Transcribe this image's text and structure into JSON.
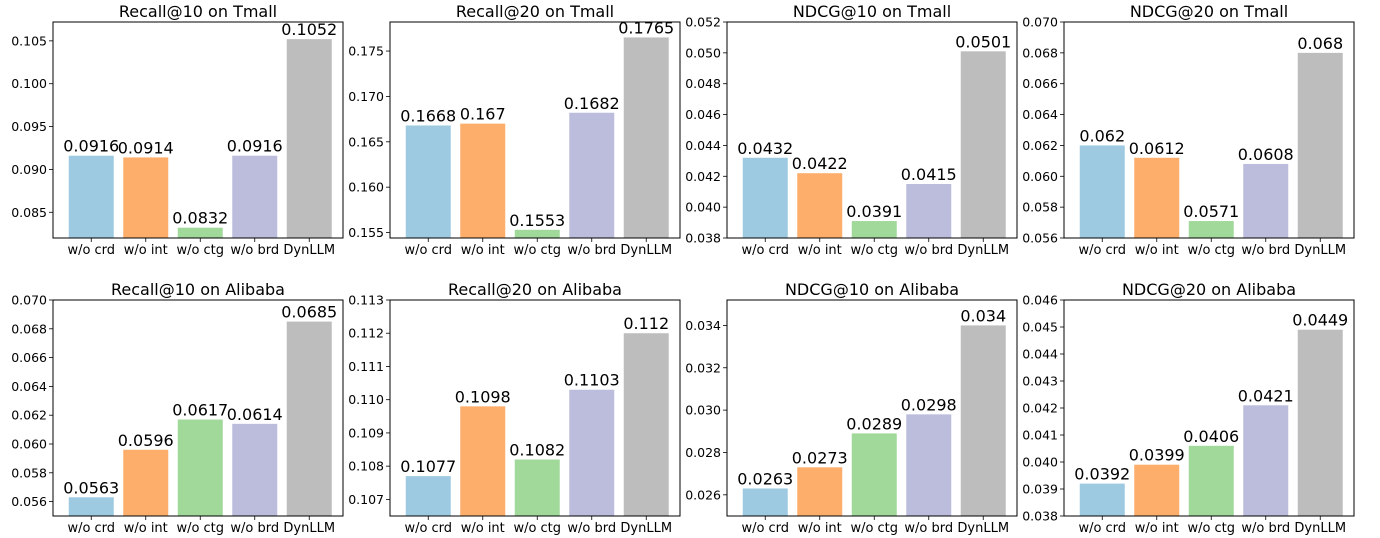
{
  "chart_data": [
    {
      "type": "bar",
      "title": "Recall@10 on Tmall",
      "categories": [
        "w/o crd",
        "w/o int",
        "w/o ctg",
        "w/o brd",
        "DynLLM"
      ],
      "values": [
        0.0916,
        0.0914,
        0.0832,
        0.0916,
        0.1052
      ],
      "value_labels": [
        "0.0916",
        "0.0914",
        "0.0832",
        "0.0916",
        "0.1052"
      ],
      "ylim": [
        0.082,
        0.1072
      ],
      "yticks": [
        "0.085",
        "0.090",
        "0.095",
        "0.100",
        "0.105"
      ],
      "xlabel": "",
      "ylabel": ""
    },
    {
      "type": "bar",
      "title": "Recall@20 on Tmall",
      "categories": [
        "w/o crd",
        "w/o int",
        "w/o ctg",
        "w/o brd",
        "DynLLM"
      ],
      "values": [
        0.1668,
        0.167,
        0.1553,
        0.1682,
        0.1765
      ],
      "value_labels": [
        "0.1668",
        "0.167",
        "0.1553",
        "0.1682",
        "0.1765"
      ],
      "ylim": [
        0.1544,
        0.1782
      ],
      "yticks": [
        "0.155",
        "0.160",
        "0.165",
        "0.170",
        "0.175"
      ],
      "xlabel": "",
      "ylabel": ""
    },
    {
      "type": "bar",
      "title": "NDCG@10 on Tmall",
      "categories": [
        "w/o crd",
        "w/o int",
        "w/o ctg",
        "w/o brd",
        "DynLLM"
      ],
      "values": [
        0.0432,
        0.0422,
        0.0391,
        0.0415,
        0.0501
      ],
      "value_labels": [
        "0.0432",
        "0.0422",
        "0.0391",
        "0.0415",
        "0.0501"
      ],
      "ylim": [
        0.038,
        0.052
      ],
      "yticks": [
        "0.038",
        "0.040",
        "0.042",
        "0.044",
        "0.046",
        "0.048",
        "0.050",
        "0.052"
      ],
      "xlabel": "",
      "ylabel": ""
    },
    {
      "type": "bar",
      "title": "NDCG@20 on Tmall",
      "categories": [
        "w/o crd",
        "w/o int",
        "w/o ctg",
        "w/o brd",
        "DynLLM"
      ],
      "values": [
        0.062,
        0.0612,
        0.0571,
        0.0608,
        0.068
      ],
      "value_labels": [
        "0.062",
        "0.0612",
        "0.0571",
        "0.0608",
        "0.068"
      ],
      "ylim": [
        0.056,
        0.07
      ],
      "yticks": [
        "0.056",
        "0.058",
        "0.060",
        "0.062",
        "0.064",
        "0.066",
        "0.068",
        "0.070"
      ],
      "xlabel": "",
      "ylabel": ""
    },
    {
      "type": "bar",
      "title": "Recall@10 on Alibaba",
      "categories": [
        "w/o crd",
        "w/o int",
        "w/o ctg",
        "w/o brd",
        "DynLLM"
      ],
      "values": [
        0.0563,
        0.0596,
        0.0617,
        0.0614,
        0.0685
      ],
      "value_labels": [
        "0.0563",
        "0.0596",
        "0.0617",
        "0.0614",
        "0.0685"
      ],
      "ylim": [
        0.055,
        0.07
      ],
      "yticks": [
        "0.056",
        "0.058",
        "0.060",
        "0.062",
        "0.064",
        "0.066",
        "0.068",
        "0.070"
      ],
      "xlabel": "",
      "ylabel": ""
    },
    {
      "type": "bar",
      "title": "Recall@20 on Alibaba",
      "categories": [
        "w/o crd",
        "w/o int",
        "w/o ctg",
        "w/o brd",
        "DynLLM"
      ],
      "values": [
        0.1077,
        0.1098,
        0.1082,
        0.1103,
        0.112
      ],
      "value_labels": [
        "0.1077",
        "0.1098",
        "0.1082",
        "0.1103",
        "0.112"
      ],
      "ylim": [
        0.1065,
        0.113
      ],
      "yticks": [
        "0.107",
        "0.108",
        "0.109",
        "0.110",
        "0.111",
        "0.112",
        "0.113"
      ],
      "xlabel": "",
      "ylabel": ""
    },
    {
      "type": "bar",
      "title": "NDCG@10 on Alibaba",
      "categories": [
        "w/o crd",
        "w/o int",
        "w/o ctg",
        "w/o brd",
        "DynLLM"
      ],
      "values": [
        0.0263,
        0.0273,
        0.0289,
        0.0298,
        0.034
      ],
      "value_labels": [
        "0.0263",
        "0.0273",
        "0.0289",
        "0.0298",
        "0.034"
      ],
      "ylim": [
        0.025,
        0.0352
      ],
      "yticks": [
        "0.026",
        "0.028",
        "0.030",
        "0.032",
        "0.034"
      ],
      "xlabel": "",
      "ylabel": ""
    },
    {
      "type": "bar",
      "title": "NDCG@20 on Alibaba",
      "categories": [
        "w/o crd",
        "w/o int",
        "w/o ctg",
        "w/o brd",
        "DynLLM"
      ],
      "values": [
        0.0392,
        0.0399,
        0.0406,
        0.0421,
        0.0449
      ],
      "value_labels": [
        "0.0392",
        "0.0399",
        "0.0406",
        "0.0421",
        "0.0449"
      ],
      "ylim": [
        0.038,
        0.046
      ],
      "yticks": [
        "0.038",
        "0.039",
        "0.040",
        "0.041",
        "0.042",
        "0.043",
        "0.044",
        "0.045",
        "0.046"
      ],
      "xlabel": "",
      "ylabel": ""
    }
  ],
  "bar_colors": [
    "#9ecae1",
    "#fdae6b",
    "#a1d99b",
    "#bcbddc",
    "#bdbdbd"
  ],
  "grid": false,
  "legend": "none"
}
